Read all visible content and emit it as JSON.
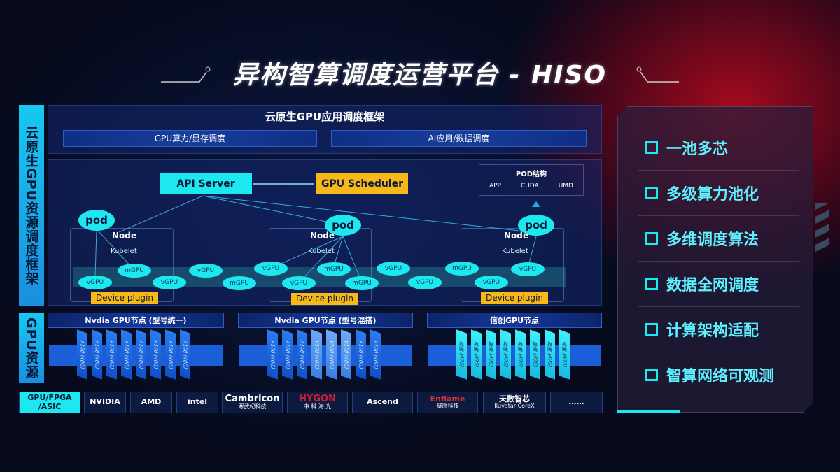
{
  "title": "异构智算调度运营平台 - HISO",
  "side_labels": {
    "framework": "云原生GPU资源调度框架",
    "resources": "GPU资源",
    "chips": "GPU/FPGA /ASIC"
  },
  "top": {
    "title": "云原生GPU应用调度框架",
    "bar1": "GPU算力/显存调度",
    "bar2": "AI应用/数据调度"
  },
  "diagram": {
    "api_server": "API Server",
    "gpu_scheduler": "GPU Scheduler",
    "pod_structure": {
      "title": "POD结构",
      "items": [
        "APP",
        "CUDA",
        "UMD"
      ]
    },
    "pod": "pod",
    "node": "Node",
    "kubelet": "Kubelet",
    "device_plugin": "Device plugin",
    "gpus": [
      "vGPU",
      "mGPU",
      "vGPU",
      "vGPU",
      "mGPU",
      "vGPU",
      "mGPU",
      "vGPU",
      "mGPU",
      "vGPU",
      "vGPU",
      "mGPU",
      "vGPU",
      "vGPU"
    ]
  },
  "gpu_nodes": [
    {
      "title": "Nvdia GPU节点 (型号统一)",
      "cards": [
        "A100 (40G)",
        "A100 (40G)",
        "A100 (40G)",
        "A100 (40G)",
        "A100 (40G)",
        "A100 (40G)",
        "A100 (40G)",
        "A100 (40G)"
      ]
    },
    {
      "title": "Nvdia GPU节点 (型号混搭)",
      "cards": [
        "A100 (40G)",
        "A100 (40G)",
        "A100 (40G)",
        "V100 (40G)",
        "V100 (40G)",
        "V100 (40G)",
        "A100 (40G)",
        "A100 (40G)"
      ]
    },
    {
      "title": "信创GPU节点",
      "cards": [
        "昇腾 (40G)",
        "昇腾 (40G)",
        "昇腾 (40G)",
        "昇腾 (40G)",
        "昇腾 (40G)",
        "昇腾 (40G)",
        "昇腾 (40G)",
        "昇腾 (40G)"
      ]
    }
  ],
  "vendors": [
    {
      "name": "NVIDIA"
    },
    {
      "name": "AMD"
    },
    {
      "name": "intel"
    },
    {
      "name": "Cambricon",
      "sub": "寒武纪科技"
    },
    {
      "name": "HYGON",
      "sub": "中 科 海 光"
    },
    {
      "name": "Ascend"
    },
    {
      "name": "Enflame",
      "sub": "燧原科技"
    },
    {
      "name": "天数智芯",
      "sub": "Iluvatar CoreX"
    },
    {
      "name": "……"
    }
  ],
  "features": [
    "一池多芯",
    "多级算力池化",
    "多维调度算法",
    "数据全网调度",
    "计算架构适配",
    "智算网络可观测"
  ],
  "colors": {
    "cyan": "#1de8f0",
    "orange": "#f7b818",
    "blue": "#1a5fd8"
  }
}
